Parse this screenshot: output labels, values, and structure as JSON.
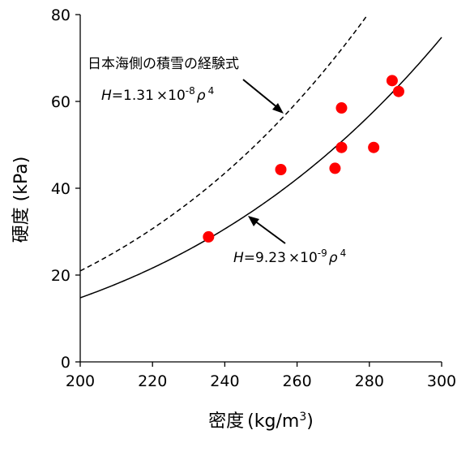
{
  "chart_data": {
    "type": "scatter",
    "xlabel": "密度",
    "xlabel_unit_prefix": "(kg/m",
    "xlabel_unit_exp": "3",
    "xlabel_unit_suffix": ")",
    "ylabel": "硬度 (kPa)",
    "xlim": [
      200,
      300
    ],
    "ylim": [
      0,
      80
    ],
    "x_ticks": [
      200,
      220,
      240,
      260,
      280,
      300
    ],
    "y_ticks": [
      0,
      20,
      40,
      60,
      80
    ],
    "grid": false,
    "points": [
      {
        "x": 235.5,
        "y": 28.8
      },
      {
        "x": 255.5,
        "y": 44.3
      },
      {
        "x": 270.5,
        "y": 44.6
      },
      {
        "x": 272.3,
        "y": 49.4
      },
      {
        "x": 272.3,
        "y": 58.5
      },
      {
        "x": 281.2,
        "y": 49.4
      },
      {
        "x": 286.3,
        "y": 64.8
      },
      {
        "x": 288.1,
        "y": 62.3
      }
    ],
    "point_color": "#ff0000",
    "curves": [
      {
        "style": "dashed",
        "coefficient": 1.31e-08,
        "exponent": 4,
        "label": "日本海側の積雪の経験式",
        "formula": {
          "var": "H",
          "eq": "=1.31",
          "times": "×",
          "base": "10",
          "exp": "-8",
          "rho": "ρ",
          "pow": "4"
        }
      },
      {
        "style": "solid",
        "coefficient": 9.23e-09,
        "exponent": 4,
        "formula": {
          "var": "H",
          "eq": "=9.23",
          "times": "×",
          "base": "10",
          "exp": "-9",
          "rho": "ρ",
          "pow": "4"
        }
      }
    ]
  }
}
